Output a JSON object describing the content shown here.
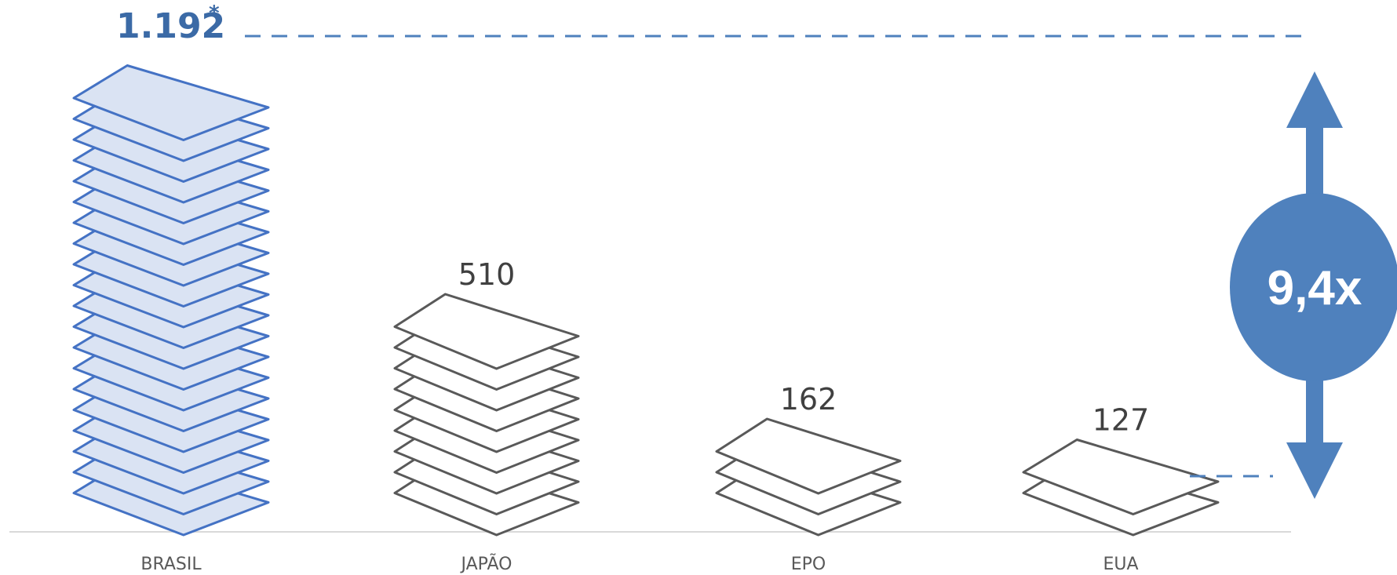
{
  "chart_data": {
    "type": "bar",
    "categories": [
      "BRASIL",
      "JAPÃO",
      "EPO",
      "EUA"
    ],
    "values": [
      1192,
      510,
      162,
      127
    ],
    "value_labels": [
      "1.192",
      "510",
      "162",
      "127"
    ],
    "footnote_mark": "*",
    "highlight": "BRASIL",
    "ratio_label": "9,4x",
    "title": "",
    "xlabel": "",
    "ylabel": "",
    "ylim": [
      0,
      1192
    ],
    "grid": false,
    "legend": "none"
  },
  "colors": {
    "highlight_stroke": "#4472c4",
    "highlight_fill": "#dae3f3",
    "default_stroke": "#595959",
    "default_fill": "#ffffff",
    "accent": "#4f81bd",
    "axis": "#d9d9d9"
  }
}
